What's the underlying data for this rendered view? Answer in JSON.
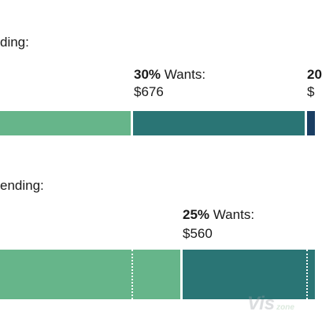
{
  "chart_data": [
    {
      "type": "bar",
      "orientation": "horizontal-stacked",
      "title": "ding:",
      "segments": [
        {
          "category": "",
          "color": "#66b58a"
        },
        {
          "category": "Wants",
          "percent_label": "30%",
          "value_label": "$676",
          "value": 676,
          "color": "#2a7575"
        },
        {
          "category": "",
          "percent_label": "20",
          "value_label": "$",
          "color": "#1a3e63"
        }
      ]
    },
    {
      "type": "bar",
      "orientation": "horizontal-stacked",
      "title": "ending:",
      "segments": [
        {
          "category": "",
          "color": "#66b58a"
        },
        {
          "category": "Wants",
          "percent_label": "25%",
          "value_label": "$560",
          "value": 560,
          "color": "#2a7575"
        },
        {
          "category": "",
          "color": "#2a7575"
        }
      ]
    }
  ],
  "watermark": {
    "main": "Vis",
    "sub": "zone"
  }
}
